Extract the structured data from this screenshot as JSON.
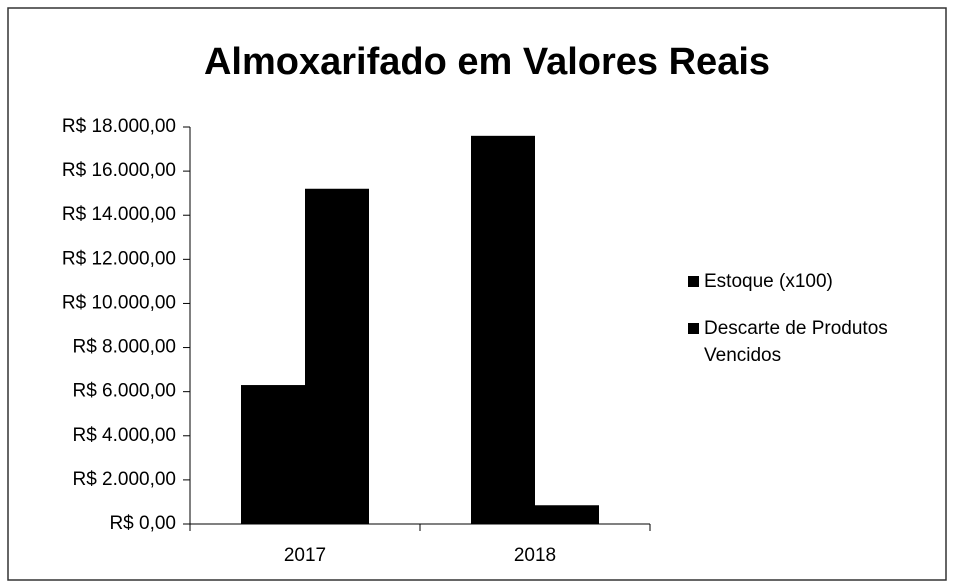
{
  "chart_data": {
    "type": "bar",
    "title": "Almoxarifado em Valores Reais",
    "categories": [
      "2017",
      "2018"
    ],
    "series": [
      {
        "name": "Estoque (x100)",
        "color": "#000000",
        "values": [
          6300,
          17600
        ]
      },
      {
        "name": "Descarte de Produtos Vencidos",
        "color": "#000000",
        "values": [
          15200,
          850
        ]
      }
    ],
    "ylim": [
      0,
      18000
    ],
    "yticks": [
      {
        "value": 0,
        "label": "R$ 0,00"
      },
      {
        "value": 2000,
        "label": "R$ 2.000,00"
      },
      {
        "value": 4000,
        "label": "R$ 4.000,00"
      },
      {
        "value": 6000,
        "label": "R$ 6.000,00"
      },
      {
        "value": 8000,
        "label": "R$ 8.000,00"
      },
      {
        "value": 10000,
        "label": "R$ 10.000,00"
      },
      {
        "value": 12000,
        "label": "R$ 12.000,00"
      },
      {
        "value": 14000,
        "label": "R$ 14.000,00"
      },
      {
        "value": 16000,
        "label": "R$ 16.000,00"
      },
      {
        "value": 18000,
        "label": "R$ 18.000,00"
      }
    ],
    "legend": "right",
    "grid": false
  }
}
